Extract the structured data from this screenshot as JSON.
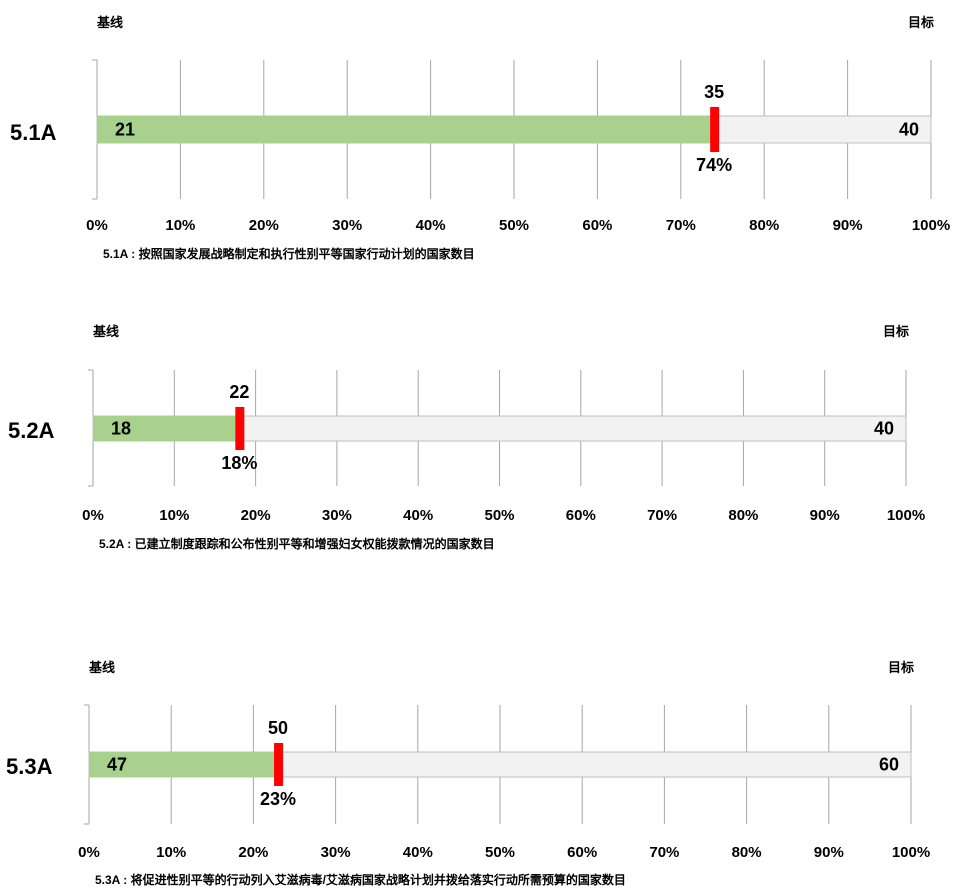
{
  "chart_data": [
    {
      "type": "bar",
      "row_label": "5.1A",
      "baseline_label": "基线",
      "target_label": "目标",
      "baseline": 21,
      "target": 40,
      "current": 35,
      "progress_pct": 74,
      "progress_text": "74%",
      "x_ticks": [
        "0%",
        "10%",
        "20%",
        "30%",
        "40%",
        "50%",
        "60%",
        "70%",
        "80%",
        "90%",
        "100%"
      ],
      "xlim": [
        0,
        100
      ],
      "grid": true,
      "caption": "5.1A : 按照国家发展战略制定和执行性别平等国家行动计划的国家数目"
    },
    {
      "type": "bar",
      "row_label": "5.2A",
      "baseline_label": "基线",
      "target_label": "目标",
      "baseline": 18,
      "target": 40,
      "current": 22,
      "progress_pct": 18,
      "progress_text": "18%",
      "x_ticks": [
        "0%",
        "10%",
        "20%",
        "30%",
        "40%",
        "50%",
        "60%",
        "70%",
        "80%",
        "90%",
        "100%"
      ],
      "xlim": [
        0,
        100
      ],
      "grid": true,
      "caption": "5.2A : 已建立制度跟踪和公布性别平等和增强妇女权能拨款情况的国家数目"
    },
    {
      "type": "bar",
      "row_label": "5.3A",
      "baseline_label": "基线",
      "target_label": "目标",
      "baseline": 47,
      "target": 60,
      "current": 50,
      "progress_pct": 23,
      "progress_text": "23%",
      "x_ticks": [
        "0%",
        "10%",
        "20%",
        "30%",
        "40%",
        "50%",
        "60%",
        "70%",
        "80%",
        "90%",
        "100%"
      ],
      "xlim": [
        0,
        100
      ],
      "grid": true,
      "caption": "5.3A : 将促进性别平等的行动列入艾滋病毒/艾滋病国家战略计划并拨给落实行动所需预算的国家数目"
    }
  ],
  "colors": {
    "progress_fill": "#a9d18e",
    "remaining_fill": "#f2f2f2",
    "marker": "#ff0000",
    "grid": "#a6a6a6"
  }
}
